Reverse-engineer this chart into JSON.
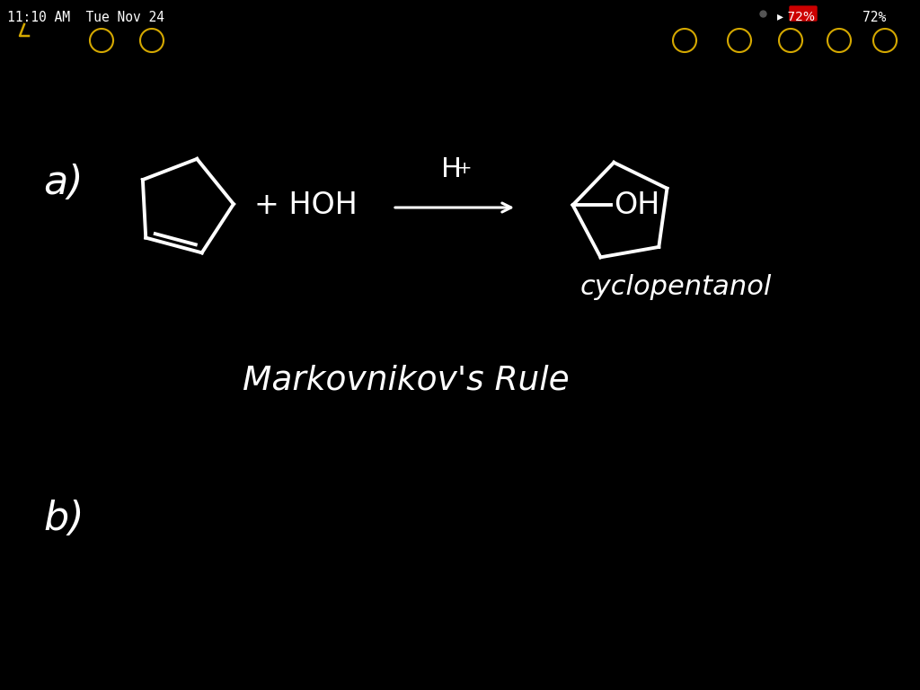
{
  "bg_color": "#000000",
  "line_color": "#ffffff",
  "text_color": "#ffffff",
  "ui_color": "#d4a800",
  "status_text": "11:10 AM  Tue Nov 24",
  "battery_text": "72%",
  "label_a": "a)",
  "label_b": "b)",
  "reactant_text": "+ HOH",
  "arrow_h_label": "H",
  "arrow_plus": "+",
  "product_oh": "OH",
  "product_name": "cyclopentanol",
  "rule_text": "Markovnikov's Rule",
  "font_size_main": 26,
  "font_size_label": 30,
  "lw_molecule": 2.8
}
